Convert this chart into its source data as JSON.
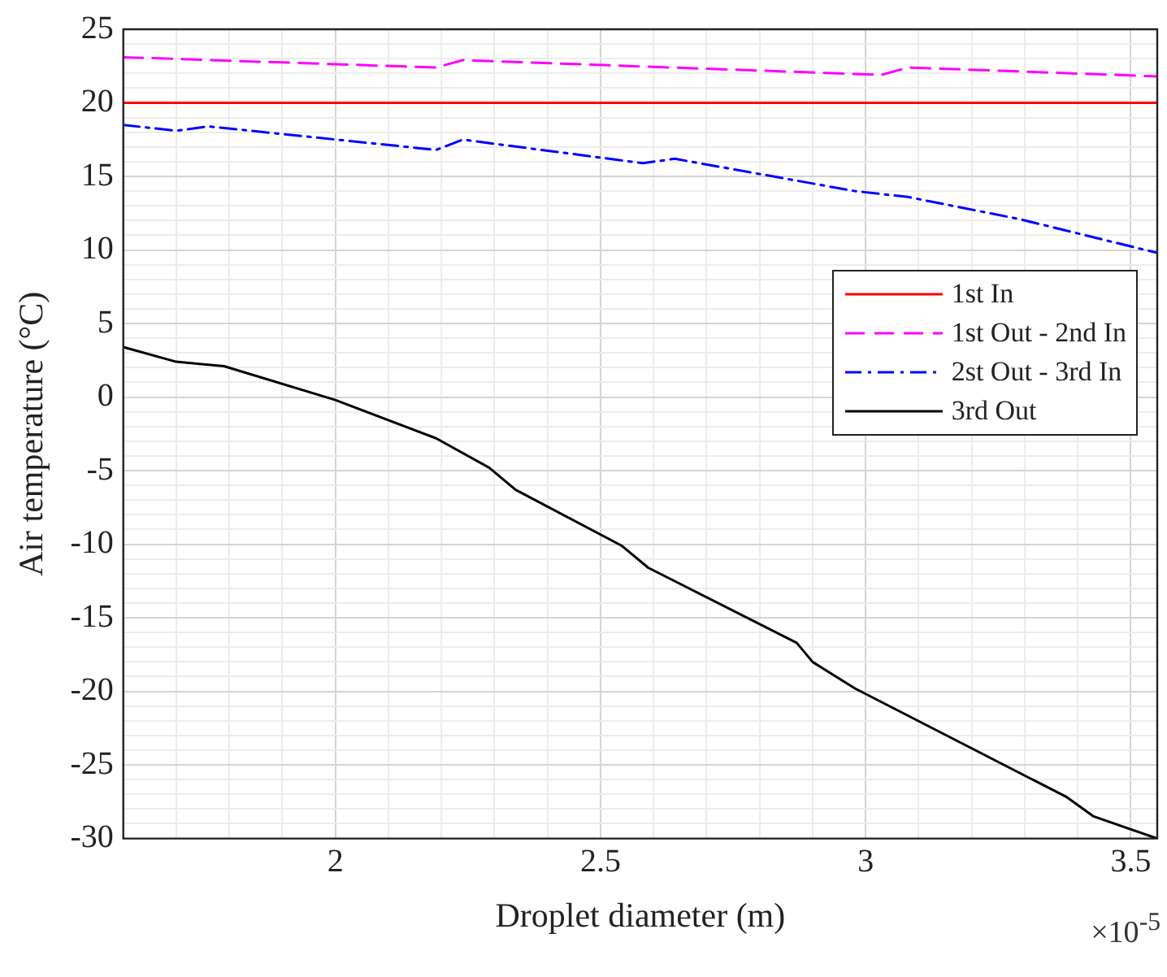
{
  "chart_data": {
    "type": "line",
    "xlabel": "Droplet diameter (m)",
    "ylabel": "Air temperature (°C)",
    "annotations": [
      "×10$^{-5}$"
    ],
    "xlim": [
      1.6,
      3.55
    ],
    "ylim": [
      -30,
      25
    ],
    "xticks": [
      {
        "value": 1.6,
        "label": null
      },
      {
        "value": 1.7,
        "label": null
      },
      {
        "value": 1.8,
        "label": null
      },
      {
        "value": 1.9,
        "label": null
      },
      2,
      {
        "value": 2.1,
        "label": null
      },
      {
        "value": 2.2,
        "label": null
      },
      {
        "value": 2.3,
        "label": null
      },
      {
        "value": 2.4,
        "label": null
      },
      2.5,
      {
        "value": 2.6,
        "label": null
      },
      {
        "value": 2.7,
        "label": null
      },
      {
        "value": 2.8,
        "label": null
      },
      {
        "value": 2.9,
        "label": null
      },
      3,
      {
        "value": 3.1,
        "label": null
      },
      {
        "value": 3.2,
        "label": null
      },
      {
        "value": 3.3,
        "label": null
      },
      {
        "value": 3.4,
        "label": null
      },
      3.5
    ],
    "yticks": [
      -30,
      {
        "value": -29,
        "label": null
      },
      {
        "value": -28,
        "label": null
      },
      {
        "value": -27,
        "label": null
      },
      {
        "value": -26,
        "label": null
      },
      -25,
      {
        "value": -24,
        "label": null
      },
      {
        "value": -23,
        "label": null
      },
      {
        "value": -22,
        "label": null
      },
      {
        "value": -21,
        "label": null
      },
      -20,
      {
        "value": -19,
        "label": null
      },
      {
        "value": -18,
        "label": null
      },
      {
        "value": -17,
        "label": null
      },
      {
        "value": -16,
        "label": null
      },
      -15,
      {
        "value": -14,
        "label": null
      },
      {
        "value": -13,
        "label": null
      },
      {
        "value": -12,
        "label": null
      },
      {
        "value": -11,
        "label": null
      },
      -10,
      {
        "value": -9,
        "label": null
      },
      {
        "value": -8,
        "label": null
      },
      {
        "value": -7,
        "label": null
      },
      {
        "value": -6,
        "label": null
      },
      -5,
      {
        "value": -4,
        "label": null
      },
      {
        "value": -3,
        "label": null
      },
      {
        "value": -2,
        "label": null
      },
      {
        "value": -1,
        "label": null
      },
      0,
      {
        "value": 1,
        "label": null
      },
      {
        "value": 2,
        "label": null
      },
      {
        "value": 3,
        "label": null
      },
      {
        "value": 4,
        "label": null
      },
      5,
      {
        "value": 6,
        "label": null
      },
      {
        "value": 7,
        "label": null
      },
      {
        "value": 8,
        "label": null
      },
      {
        "value": 9,
        "label": null
      },
      10,
      {
        "value": 11,
        "label": null
      },
      {
        "value": 12,
        "label": null
      },
      {
        "value": 13,
        "label": null
      },
      {
        "value": 14,
        "label": null
      },
      15,
      {
        "value": 16,
        "label": null
      },
      {
        "value": 17,
        "label": null
      },
      {
        "value": 18,
        "label": null
      },
      {
        "value": 19,
        "label": null
      },
      20,
      {
        "value": 21,
        "label": null
      },
      {
        "value": 22,
        "label": null
      },
      {
        "value": 23,
        "label": null
      },
      {
        "value": 24,
        "label": null
      },
      25
    ],
    "grid": true,
    "legend": "right",
    "marker": "none",
    "series": [
      {
        "name": "1st In",
        "color": "#ff0000",
        "line_style": "solid",
        "x": [
          1.6,
          3.55
        ],
        "values": [
          20,
          20
        ]
      },
      {
        "name": "1st Out - 2nd In",
        "color": "#ff00ff",
        "line_style": "dashed",
        "x": [
          1.6,
          2.19,
          2.24,
          3.03,
          3.08,
          3.55
        ],
        "values": [
          23.1,
          22.4,
          22.9,
          21.9,
          22.4,
          21.8
        ]
      },
      {
        "name": "2st Out - 3rd In",
        "color": "#0000ff",
        "line_style": "dashdot",
        "x": [
          1.6,
          1.7,
          1.76,
          2.19,
          2.24,
          2.58,
          2.64,
          2.98,
          3.08,
          3.29,
          3.55
        ],
        "values": [
          18.5,
          18.1,
          18.4,
          16.8,
          17.5,
          15.9,
          16.2,
          14.0,
          13.6,
          12.1,
          9.8
        ]
      },
      {
        "name": "3rd Out",
        "color": "#000000",
        "line_style": "solid",
        "x": [
          1.6,
          1.7,
          1.79,
          2.0,
          2.19,
          2.29,
          2.34,
          2.54,
          2.59,
          2.87,
          2.9,
          2.98,
          3.38,
          3.43,
          3.55
        ],
        "values": [
          3.4,
          2.4,
          2.1,
          -0.2,
          -2.8,
          -4.8,
          -6.3,
          -10.1,
          -11.6,
          -16.7,
          -18.0,
          -19.8,
          -27.2,
          -28.5,
          -30
        ]
      }
    ]
  }
}
